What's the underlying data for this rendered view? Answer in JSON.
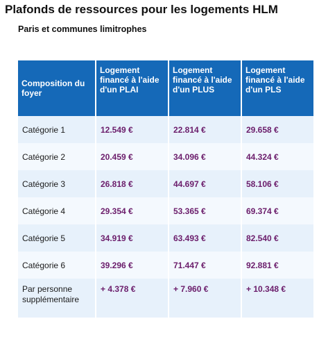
{
  "title": "Plafonds de ressources pour les logements HLM",
  "subtitle": "Paris et communes limitrophes",
  "table": {
    "headers": [
      "Composition du foyer",
      "Logement financé à l'aide d'un PLAI",
      "Logement financé à l'aide d'un PLUS",
      "Logement financé à l'aide d'un PLS"
    ],
    "rows": [
      {
        "label": "Catégorie 1",
        "plai": "12.549 €",
        "plus": "22.814 €",
        "pls": "29.658 €"
      },
      {
        "label": "Catégorie 2",
        "plai": "20.459 €",
        "plus": "34.096 €",
        "pls": "44.324 €"
      },
      {
        "label": "Catégorie 3",
        "plai": "26.818 €",
        "plus": "44.697 €",
        "pls": "58.106 €"
      },
      {
        "label": "Catégorie 4",
        "plai": "29.354 €",
        "plus": "53.365 €",
        "pls": "69.374 €"
      },
      {
        "label": "Catégorie 5",
        "plai": "34.919 €",
        "plus": "63.493 €",
        "pls": "82.540 €"
      },
      {
        "label": "Catégorie 6",
        "plai": "39.296 €",
        "plus": "71.447 €",
        "pls": "92.881 €"
      },
      {
        "label": "Par personne supplémentaire",
        "plai": "+ 4.378 €",
        "plus": "+ 7.960 €",
        "pls": "+ 10.348 €"
      }
    ]
  },
  "colors": {
    "header_bg": "#1569b8",
    "header_text": "#ffffff",
    "row_odd": "#e7f1fb",
    "row_even": "#f4f9fe",
    "value_text": "#6b1d6b"
  }
}
